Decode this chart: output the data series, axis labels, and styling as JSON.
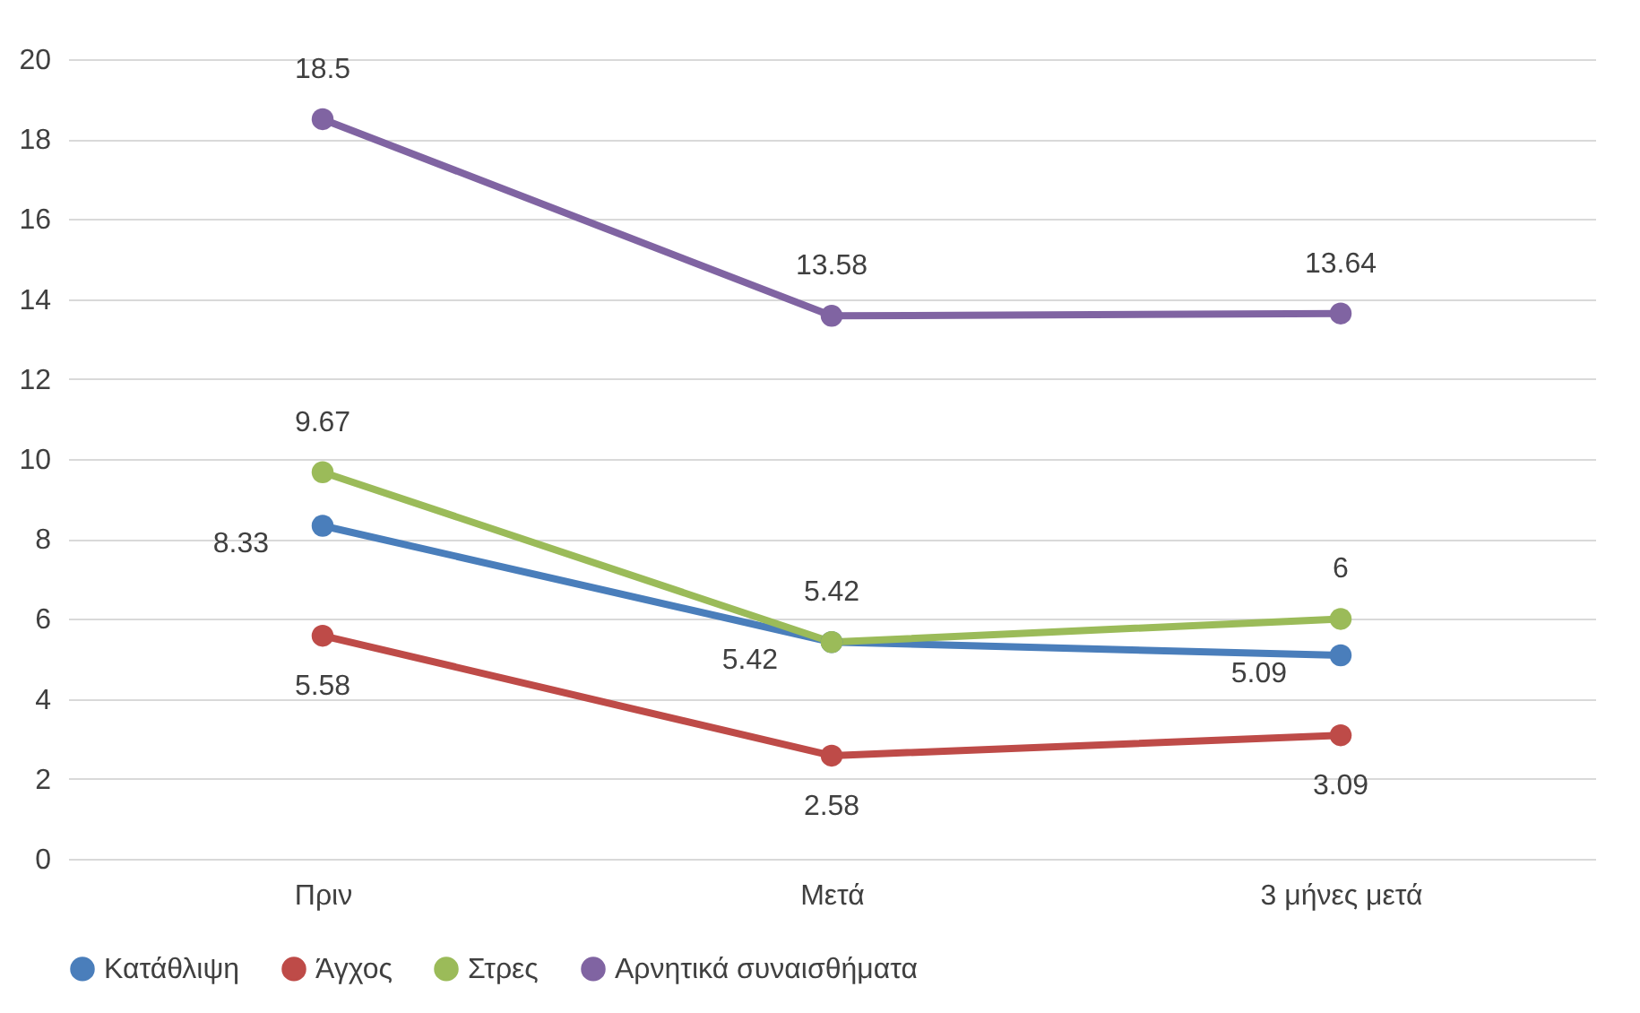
{
  "chart_data": {
    "type": "line",
    "categories": [
      "Πριν",
      "Μετά",
      "3 μήνες μετά"
    ],
    "series": [
      {
        "name": "Κατάθλιψη",
        "color": "#4a7ebb",
        "values": [
          8.33,
          5.42,
          5.09
        ]
      },
      {
        "name": "Άγχος",
        "color": "#be4b48",
        "values": [
          5.58,
          2.58,
          3.09
        ]
      },
      {
        "name": "Στρες",
        "color": "#9bbb59",
        "values": [
          9.67,
          5.42,
          6
        ]
      },
      {
        "name": "Αρνητικά συναισθήματα",
        "color": "#8064a2",
        "values": [
          18.5,
          13.58,
          13.64
        ]
      }
    ],
    "ylim": [
      0,
      20
    ],
    "yticks": [
      0,
      2,
      4,
      6,
      8,
      10,
      12,
      14,
      16,
      18,
      20
    ],
    "grid": "y",
    "legend": "bottom",
    "marker": "circle",
    "line_style": "solid",
    "data_labels": true
  }
}
